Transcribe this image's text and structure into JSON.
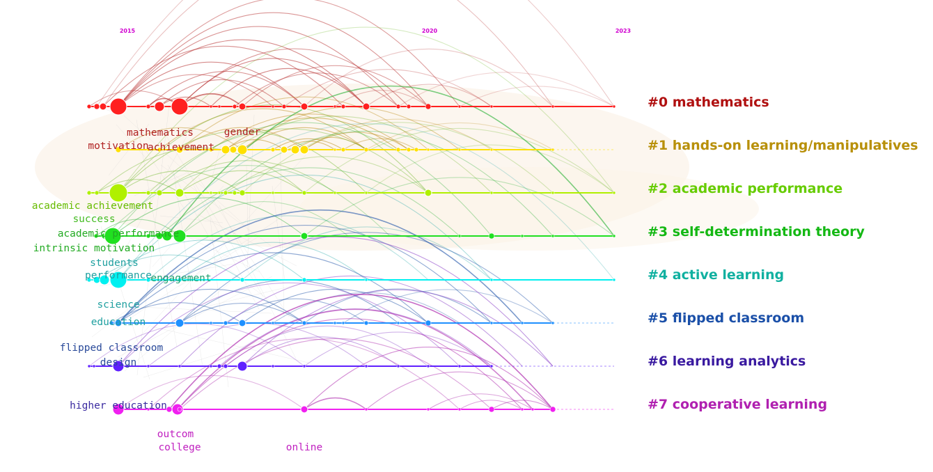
{
  "years": [
    {
      "label": "2015",
      "year": 2015
    },
    {
      "label": "2020",
      "year": 2020
    },
    {
      "label": "2023",
      "year": 2023
    }
  ],
  "clusters": [
    {
      "id": "#0",
      "name": "mathematics",
      "label": "#0 mathematics",
      "color": "#ff2020",
      "label_color": "#b01010",
      "arc_color": "#b52a2a"
    },
    {
      "id": "#1",
      "name": "hands-on learning/manipulatives",
      "label": "#1 hands-on learning/manipulatives",
      "color": "#ffe000",
      "label_color": "#b8900a",
      "arc_color": "#b8860b"
    },
    {
      "id": "#2",
      "name": "academic performance",
      "label": "#2 academic performance",
      "color": "#b0f000",
      "label_color": "#66cc00",
      "arc_color": "#6fb82a"
    },
    {
      "id": "#3",
      "name": "self-determination theory",
      "label": "#3 self-determination theory",
      "color": "#20e020",
      "label_color": "#14b814",
      "arc_color": "#24b030"
    },
    {
      "id": "#4",
      "name": "active learning",
      "label": "#4 active learning",
      "color": "#00f0f0",
      "label_color": "#10b0a0",
      "arc_color": "#10a0a0"
    },
    {
      "id": "#5",
      "name": "flipped classroom",
      "label": "#5 flipped classroom",
      "color": "#1e90ff",
      "label_color": "#1a4fa8",
      "arc_color": "#2255aa"
    },
    {
      "id": "#6",
      "name": "learning analytics",
      "label": "#6 learning analytics",
      "color": "#6020ff",
      "label_color": "#3a1aa0",
      "arc_color": "#8a40c8"
    },
    {
      "id": "#7",
      "name": "cooperative learning",
      "label": "#7 cooperative learning",
      "color": "#f020f0",
      "label_color": "#b020b0",
      "arc_color": "#b030b0"
    }
  ],
  "keywords": [
    {
      "text": "mathematics",
      "cluster": 0,
      "color": "#b02020"
    },
    {
      "text": "gender",
      "cluster": 0,
      "color": "#b02020"
    },
    {
      "text": "motivation",
      "cluster": 1,
      "color": "#b02020"
    },
    {
      "text": "achievement",
      "cluster": 1,
      "color": "#b02020"
    },
    {
      "text": "academic achievement",
      "cluster": 2,
      "color": "#66bb00"
    },
    {
      "text": "success",
      "cluster": 3,
      "color": "#44bb22"
    },
    {
      "text": "academic performance",
      "cluster": 3,
      "color": "#22aa22"
    },
    {
      "text": "intrinsic motivation",
      "cluster": 3,
      "color": "#22aa22"
    },
    {
      "text": "students",
      "cluster": 4,
      "color": "#20a0a0"
    },
    {
      "text": "performance",
      "cluster": 4,
      "color": "#20a0a0"
    },
    {
      "text": "engagement",
      "cluster": 4,
      "color": "#20a070"
    },
    {
      "text": "science",
      "cluster": 5,
      "color": "#20a0a0"
    },
    {
      "text": "education",
      "cluster": 5,
      "color": "#20a0a0"
    },
    {
      "text": "flipped classroom",
      "cluster": 6,
      "color": "#2a4a9a"
    },
    {
      "text": "design",
      "cluster": 6,
      "color": "#2a4a9a"
    },
    {
      "text": "higher education",
      "cluster": 7,
      "color": "#3a2aa0"
    },
    {
      "text": "outcom",
      "cluster": 7,
      "color": "#c020c0"
    },
    {
      "text": "college",
      "cluster": 7,
      "color": "#c020c0"
    },
    {
      "text": "online",
      "cluster": 7,
      "color": "#c020c0"
    }
  ]
}
